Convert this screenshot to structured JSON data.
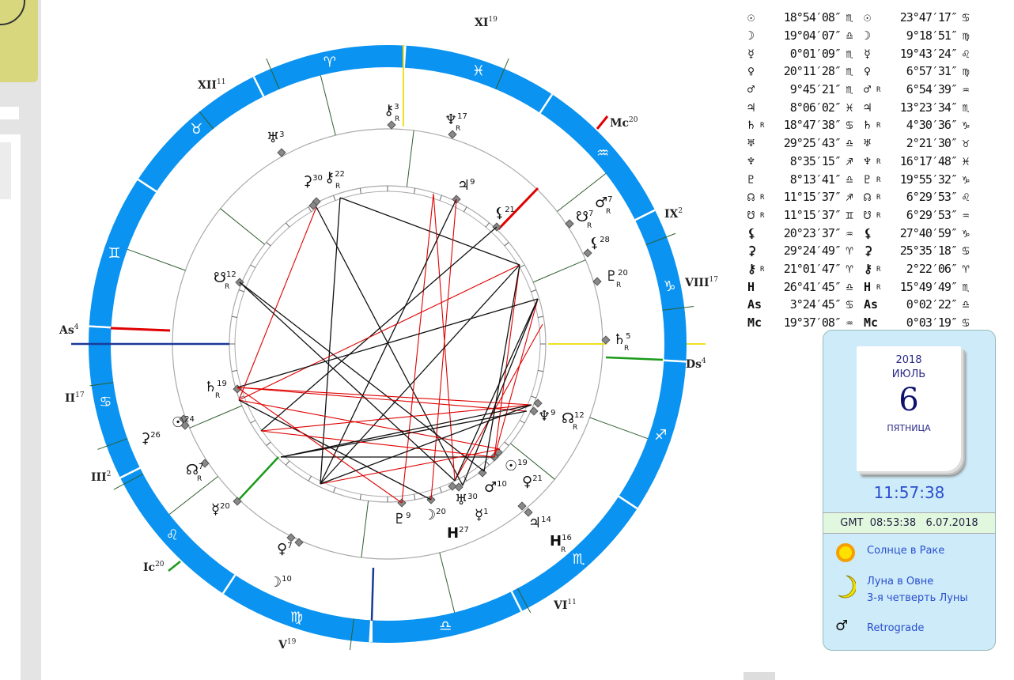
{
  "table": {
    "rows": [
      {
        "glyph": "☉",
        "left": {
          "r": "",
          "deg": "18°54′08″",
          "sign": "♏"
        },
        "right": {
          "r": "",
          "deg": "23°47′17″",
          "sign": "♋"
        }
      },
      {
        "glyph": "☽",
        "left": {
          "r": "",
          "deg": "19°04′07″",
          "sign": "♎"
        },
        "right": {
          "r": "",
          "deg": "9°18′51″",
          "sign": "♍"
        }
      },
      {
        "glyph": "☿",
        "left": {
          "r": "",
          "deg": "0°01′09″",
          "sign": "♏"
        },
        "right": {
          "r": "",
          "deg": "19°43′24″",
          "sign": "♌"
        }
      },
      {
        "glyph": "♀",
        "left": {
          "r": "",
          "deg": "20°11′28″",
          "sign": "♏"
        },
        "right": {
          "r": "",
          "deg": "6°57′31″",
          "sign": "♍"
        }
      },
      {
        "glyph": "♂",
        "left": {
          "r": "",
          "deg": "9°45′21″",
          "sign": "♏"
        },
        "right": {
          "r": "R",
          "deg": "6°54′39″",
          "sign": "♒"
        }
      },
      {
        "glyph": "♃",
        "left": {
          "r": "",
          "deg": "8°06′02″",
          "sign": "♓"
        },
        "right": {
          "r": "",
          "deg": "13°23′34″",
          "sign": "♏"
        }
      },
      {
        "glyph": "♄",
        "left": {
          "r": "R",
          "deg": "18°47′38″",
          "sign": "♋"
        },
        "right": {
          "r": "R",
          "deg": "4°30′36″",
          "sign": "♑"
        }
      },
      {
        "glyph": "♅",
        "left": {
          "r": "",
          "deg": "29°25′43″",
          "sign": "♎"
        },
        "right": {
          "r": "",
          "deg": "2°21′30″",
          "sign": "♉"
        }
      },
      {
        "glyph": "♆",
        "left": {
          "r": "",
          "deg": "8°35′15″",
          "sign": "♐"
        },
        "right": {
          "r": "R",
          "deg": "16°17′48″",
          "sign": "♓"
        }
      },
      {
        "glyph": "♇",
        "left": {
          "r": "",
          "deg": "8°13′41″",
          "sign": "♎"
        },
        "right": {
          "r": "R",
          "deg": "19°55′32″",
          "sign": "♑"
        }
      },
      {
        "glyph": "☊",
        "left": {
          "r": "R",
          "deg": "11°15′37″",
          "sign": "♐"
        },
        "right": {
          "r": "R",
          "deg": "6°29′53″",
          "sign": "♌"
        }
      },
      {
        "glyph": "☋",
        "left": {
          "r": "R",
          "deg": "11°15′37″",
          "sign": "♊"
        },
        "right": {
          "r": "R",
          "deg": "6°29′53″",
          "sign": "♒"
        }
      },
      {
        "glyph": "⚸",
        "left": {
          "r": "",
          "deg": "20°23′37″",
          "sign": "♒"
        },
        "right": {
          "r": "",
          "deg": "27°40′59″",
          "sign": "♑"
        }
      },
      {
        "glyph": "⚳",
        "left": {
          "r": "",
          "deg": "29°24′49″",
          "sign": "♈"
        },
        "right": {
          "r": "",
          "deg": "25°35′18″",
          "sign": "♋"
        }
      },
      {
        "glyph": "⚷",
        "left": {
          "r": "R",
          "deg": "21°01′47″",
          "sign": "♈"
        },
        "right": {
          "r": "R",
          "deg": "2°22′06″",
          "sign": "♈"
        }
      },
      {
        "glyph": "H",
        "left": {
          "r": "",
          "deg": "26°41′45″",
          "sign": "♎"
        },
        "right": {
          "r": "R",
          "deg": "15°49′49″",
          "sign": "♏"
        }
      },
      {
        "glyph": "As",
        "left": {
          "r": "",
          "deg": "3°24′45″",
          "sign": "♋"
        },
        "right": {
          "r": "",
          "deg": "0°02′22″",
          "sign": "♎"
        }
      },
      {
        "glyph": "Mc",
        "left": {
          "r": "",
          "deg": "19°37′08″",
          "sign": "♒"
        },
        "right": {
          "r": "",
          "deg": "0°03′19″",
          "sign": "♋"
        }
      }
    ]
  },
  "wheel": {
    "signs": [
      "♋",
      "♌",
      "♍",
      "♎",
      "♏",
      "♐",
      "♑",
      "♒",
      "♓",
      "♈",
      "♉",
      "♊"
    ],
    "cusps": [
      {
        "num": "As",
        "deg": "4"
      },
      {
        "num": "II",
        "deg": "17"
      },
      {
        "num": "III",
        "deg": "2"
      },
      {
        "num": "Ic",
        "deg": "20"
      },
      {
        "num": "V",
        "deg": "19"
      },
      {
        "num": "VI",
        "deg": "11"
      },
      {
        "num": "Ds",
        "deg": "4"
      },
      {
        "num": "VIII",
        "deg": "17"
      },
      {
        "num": "IX",
        "deg": "2"
      },
      {
        "num": "Mc",
        "deg": "20"
      },
      {
        "num": "XI",
        "deg": "19"
      },
      {
        "num": "XII",
        "deg": "11"
      }
    ],
    "planets": [
      {
        "glyph": "⚷",
        "deg": "3",
        "r": "R"
      },
      {
        "glyph": "♆",
        "deg": "17",
        "r": "R"
      },
      {
        "glyph": "♅",
        "deg": "3",
        "r": ""
      },
      {
        "glyph": "♂",
        "deg": "7",
        "r": "R"
      },
      {
        "glyph": "☋",
        "deg": "7",
        "r": "R"
      },
      {
        "glyph": "⚸",
        "deg": "28",
        "r": ""
      },
      {
        "glyph": "♇",
        "deg": "20",
        "r": "R"
      },
      {
        "glyph": "♄",
        "deg": "5",
        "r": "R"
      },
      {
        "glyph": "⚸",
        "deg": "21",
        "r": ""
      },
      {
        "glyph": "♃",
        "deg": "9",
        "r": ""
      },
      {
        "glyph": "⚷",
        "deg": "22",
        "r": "R"
      },
      {
        "glyph": "⚳",
        "deg": "30",
        "r": ""
      },
      {
        "glyph": "☋",
        "deg": "12",
        "r": "R"
      },
      {
        "glyph": "♄",
        "deg": "19",
        "r": "R"
      },
      {
        "glyph": "☉",
        "deg": "24",
        "r": ""
      },
      {
        "glyph": "⚳",
        "deg": "26",
        "r": ""
      },
      {
        "glyph": "☊",
        "deg": "7",
        "r": "R"
      },
      {
        "glyph": "☿",
        "deg": "20",
        "r": ""
      },
      {
        "glyph": "♀",
        "deg": "7",
        "r": ""
      },
      {
        "glyph": "☽",
        "deg": "10",
        "r": ""
      },
      {
        "glyph": "♆",
        "deg": "9",
        "r": ""
      },
      {
        "glyph": "☊",
        "deg": "12",
        "r": "R"
      },
      {
        "glyph": "☉",
        "deg": "19",
        "r": ""
      },
      {
        "glyph": "♀",
        "deg": "21",
        "r": ""
      },
      {
        "glyph": "♂",
        "deg": "10",
        "r": ""
      },
      {
        "glyph": "♃",
        "deg": "14",
        "r": ""
      },
      {
        "glyph": "H",
        "deg": "16",
        "r": "R"
      },
      {
        "glyph": "♅",
        "deg": "30",
        "r": ""
      },
      {
        "glyph": "☿",
        "deg": "1",
        "r": ""
      },
      {
        "glyph": "☽",
        "deg": "20",
        "r": ""
      },
      {
        "glyph": "♇",
        "deg": "9",
        "r": ""
      },
      {
        "glyph": "H",
        "deg": "27",
        "r": ""
      }
    ],
    "colors": {
      "ring": "#0a93f0",
      "aspect_hard": "#e00000",
      "aspect_soft": "#111111",
      "cusp": "#2f5f2f",
      "asc": "#e00000",
      "axis_blue": "#1a3a9a",
      "axis_yellow": "#f0e020",
      "axis_green": "#1a9a1a"
    }
  },
  "widget": {
    "year": "2018",
    "month": "ИЮЛЬ",
    "day": "6",
    "weekday": "ПЯТНИЦА",
    "time": "11:57:38",
    "gmt": "GMT  08:53:38   6.07.2018",
    "sun": "Солнце в Раке",
    "moon": "Луна в Овне",
    "moon_phase": "3-я четверть Луны",
    "retro": "Retrograde",
    "retro_icon": "mars-icon"
  }
}
